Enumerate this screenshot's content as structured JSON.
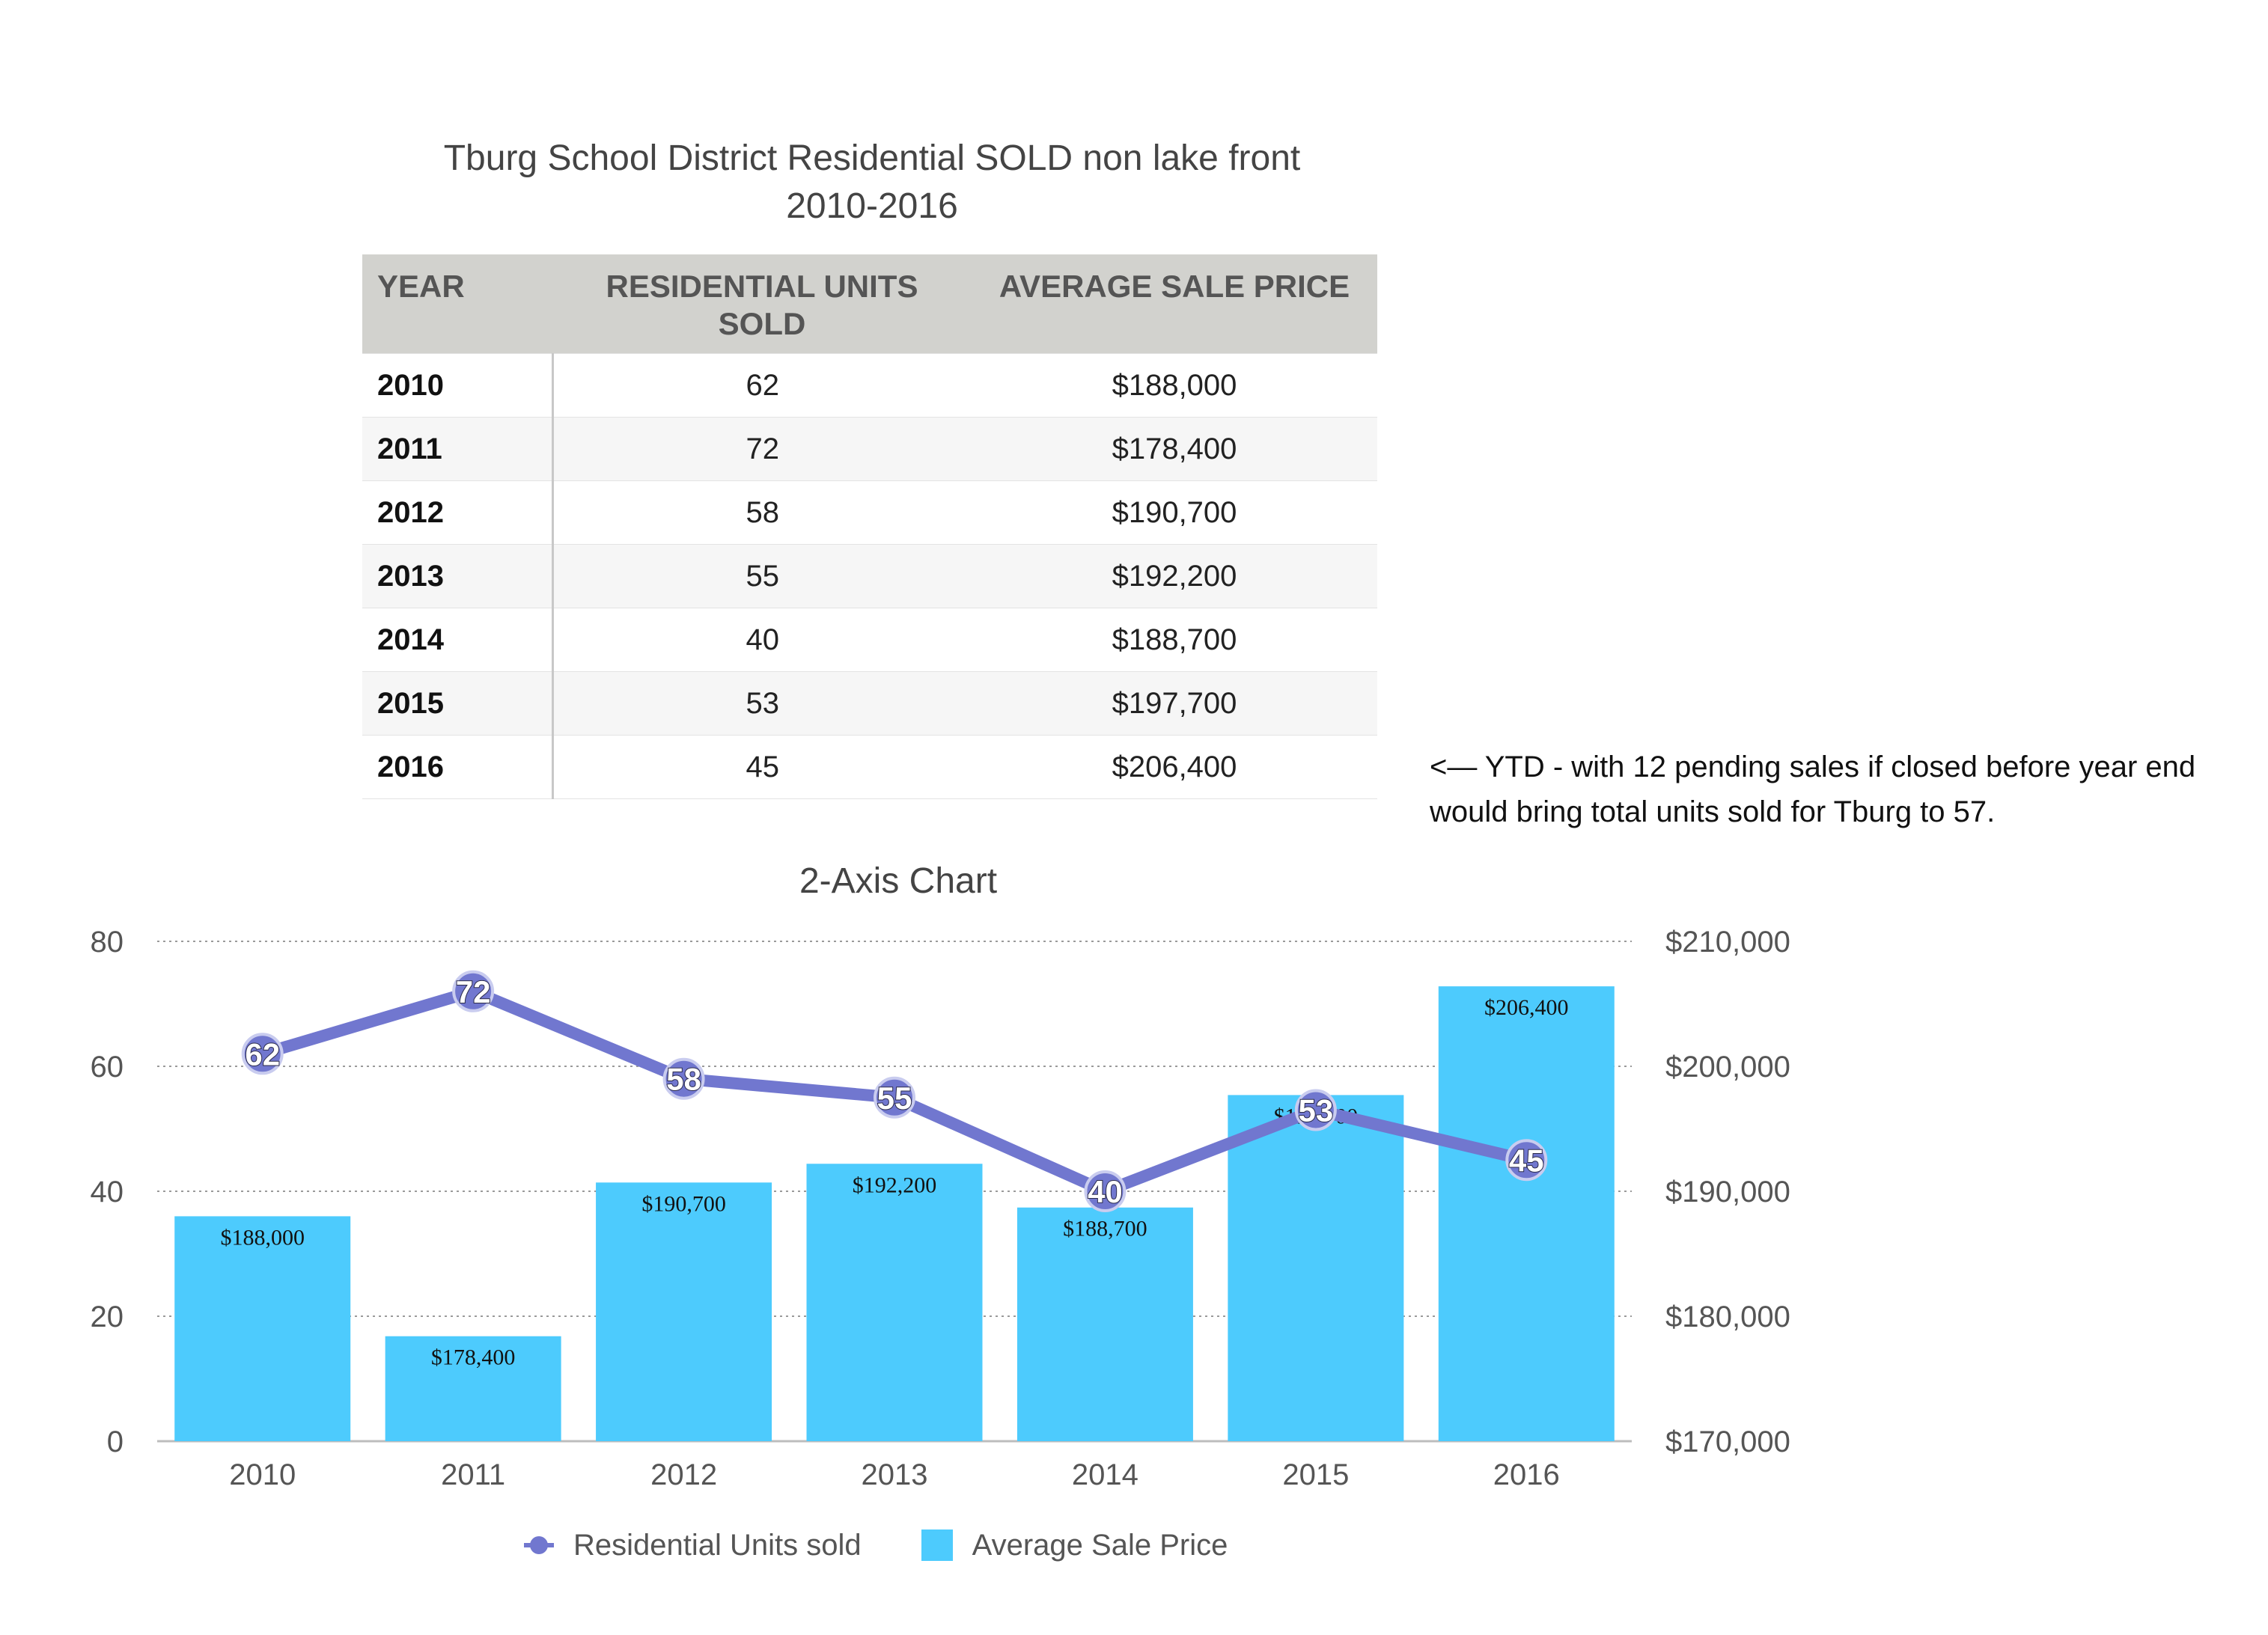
{
  "table": {
    "title_line1": "Tburg School District Residential SOLD non lake front",
    "title_line2": "2010-2016",
    "headers": [
      "YEAR",
      "RESIDENTIAL UNITS SOLD",
      "AVERAGE SALE PRICE"
    ],
    "rows": [
      {
        "year": "2010",
        "units": "62",
        "price": "$188,000"
      },
      {
        "year": "2011",
        "units": "72",
        "price": "$178,400"
      },
      {
        "year": "2012",
        "units": "58",
        "price": "$190,700"
      },
      {
        "year": "2013",
        "units": "55",
        "price": "$192,200"
      },
      {
        "year": "2014",
        "units": "40",
        "price": "$188,700"
      },
      {
        "year": "2015",
        "units": "53",
        "price": "$197,700"
      },
      {
        "year": "2016",
        "units": "45",
        "price": "$206,400"
      }
    ]
  },
  "note": {
    "line1": "<— YTD -  with 12 pending sales if closed before year end",
    "line2": "would bring total units sold for Tburg to 57."
  },
  "chart_data": {
    "type": "bar",
    "title": "2-Axis Chart",
    "categories": [
      "2010",
      "2011",
      "2012",
      "2013",
      "2014",
      "2015",
      "2016"
    ],
    "series": [
      {
        "name": "Residential Units sold",
        "type": "line",
        "axis": "left",
        "values": [
          62,
          72,
          58,
          55,
          40,
          53,
          45
        ],
        "color": "#7177cf"
      },
      {
        "name": "Average Sale Price",
        "type": "bar",
        "axis": "right",
        "values": [
          188000,
          178400,
          190700,
          192200,
          188700,
          197700,
          206400
        ],
        "labels": [
          "$188,000",
          "$178,400",
          "$190,700",
          "$192,200",
          "$188,700",
          "$197,700",
          "$206,400"
        ],
        "color": "#4dcbfd"
      }
    ],
    "y_left": {
      "min": 0,
      "max": 80,
      "ticks": [
        "0",
        "20",
        "40",
        "60",
        "80"
      ],
      "tick_values": [
        0,
        20,
        40,
        60,
        80
      ]
    },
    "y_right": {
      "min": 170000,
      "max": 210000,
      "ticks": [
        "$170,000",
        "$180,000",
        "$190,000",
        "$200,000",
        "$210,000"
      ],
      "tick_values": [
        170000,
        180000,
        190000,
        200000,
        210000
      ]
    },
    "grid": true,
    "legend": "bottom"
  }
}
